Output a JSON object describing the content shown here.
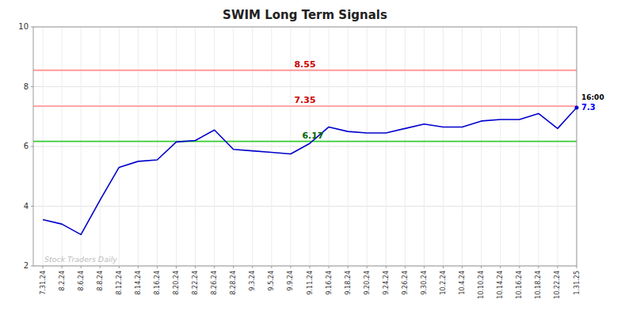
{
  "chart_data": {
    "type": "line",
    "title": "SWIM Long Term Signals",
    "categories": [
      "7.31.24",
      "8.2.24",
      "8.6.24",
      "8.8.24",
      "8.12.24",
      "8.14.24",
      "8.16.24",
      "8.20.24",
      "8.22.24",
      "8.26.24",
      "8.28.24",
      "9.3.24",
      "9.5.24",
      "9.9.24",
      "9.11.24",
      "9.16.24",
      "9.18.24",
      "9.20.24",
      "9.24.24",
      "9.26.24",
      "9.30.24",
      "10.2.24",
      "10.4.24",
      "10.10.24",
      "10.14.24",
      "10.16.24",
      "10.18.24",
      "10.22.24",
      "1.31.25"
    ],
    "values": [
      3.55,
      3.4,
      3.05,
      4.2,
      5.3,
      5.5,
      5.55,
      6.15,
      6.2,
      6.55,
      5.9,
      5.85,
      5.8,
      5.75,
      6.1,
      6.65,
      6.5,
      6.45,
      6.45,
      6.6,
      6.75,
      6.65,
      6.65,
      6.85,
      6.9,
      6.9,
      7.1,
      6.6,
      7.3
    ],
    "color": "#0000cc",
    "ylim": [
      2,
      10
    ],
    "yticks": [
      2,
      4,
      6,
      8,
      10
    ],
    "grid": true,
    "hlines": [
      {
        "value": 6.17,
        "label": "6.17",
        "color": "#33cc33",
        "label_color": "#006600"
      },
      {
        "value": 7.35,
        "label": "7.35",
        "color": "#ff9999",
        "label_color": "#cc0000"
      },
      {
        "value": 8.55,
        "label": "8.55",
        "color": "#ff9999",
        "label_color": "#cc0000"
      }
    ],
    "annotations": [
      {
        "text": "16:00",
        "color": "#000000"
      },
      {
        "text": "7.3",
        "color": "#0000ff"
      }
    ],
    "watermark": {
      "text": "Stock Traders Daily",
      "color": "#bbbbbb"
    }
  }
}
